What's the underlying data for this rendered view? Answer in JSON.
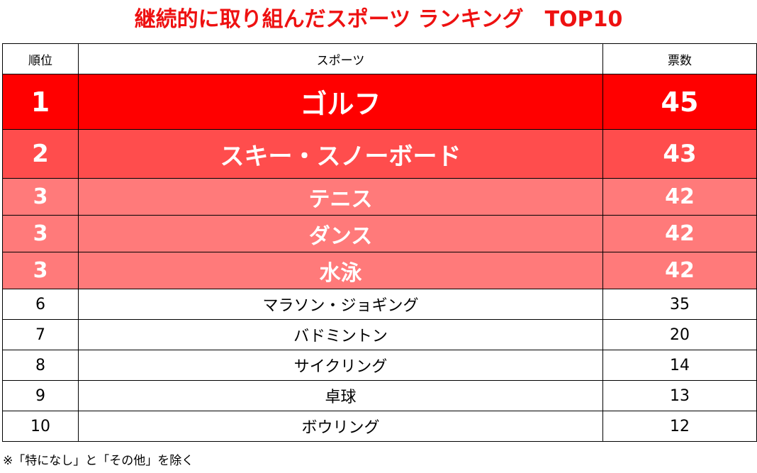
{
  "title": "継続的に取り組んだスポーツ ランキング　TOP10",
  "header": {
    "rank": "順位",
    "sport": "スポーツ",
    "votes": "票数"
  },
  "rows": [
    {
      "rank": "1",
      "sport": "ゴルフ",
      "votes": "45"
    },
    {
      "rank": "2",
      "sport": "スキー・スノーボード",
      "votes": "43"
    },
    {
      "rank": "3",
      "sport": "テニス",
      "votes": "42"
    },
    {
      "rank": "3",
      "sport": "ダンス",
      "votes": "42"
    },
    {
      "rank": "3",
      "sport": "水泳",
      "votes": "42"
    },
    {
      "rank": "6",
      "sport": "マラソン・ジョギング",
      "votes": "35"
    },
    {
      "rank": "7",
      "sport": "バドミントン",
      "votes": "20"
    },
    {
      "rank": "8",
      "sport": "サイクリング",
      "votes": "14"
    },
    {
      "rank": "9",
      "sport": "卓球",
      "votes": "13"
    },
    {
      "rank": "10",
      "sport": "ボウリング",
      "votes": "12"
    }
  ],
  "note": "※「特になし」と「その他」を除く",
  "colors": {
    "title": "#ee1111",
    "rank_1": "#ff0000",
    "rank_2": "#ff4d4d",
    "rank_3": "#ff7a7a"
  }
}
